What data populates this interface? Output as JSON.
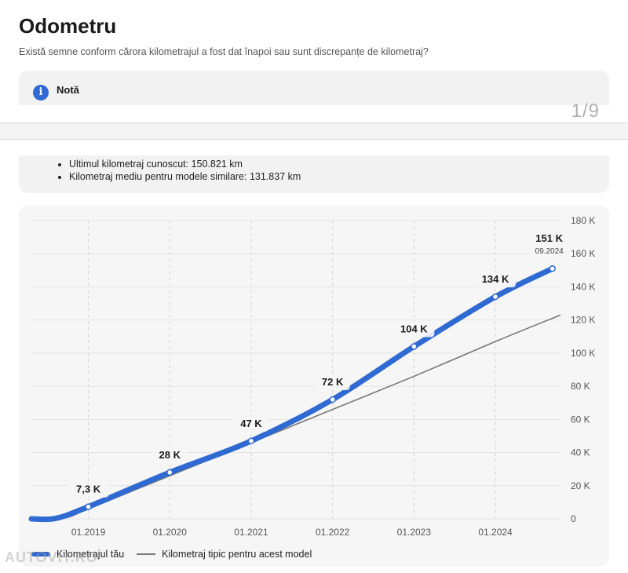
{
  "header": {
    "title": "Odometru",
    "subtitle": "Există semne conform cărora kilometrajul a fost dat înapoi sau sunt discrepanțe de kilometraj?"
  },
  "note": {
    "icon": "info-icon",
    "label": "Notă",
    "bullets": [
      "Ultimul kilometraj cunoscut: 150.821 km",
      "Kilometraj mediu pentru modele similare: 131.837 km"
    ]
  },
  "pager": {
    "text": "1/9"
  },
  "watermark": {
    "text": "AUTOVIT.RO"
  },
  "colors": {
    "accent": "#2f6ad2",
    "typical_line": "#777777",
    "card_bg": "#f6f6f6"
  },
  "chart_data": {
    "type": "line",
    "x_labels": [
      "01.2019",
      "01.2020",
      "01.2021",
      "01.2022",
      "01.2023",
      "01.2024"
    ],
    "y_ticks": [
      "0",
      "20 K",
      "40 K",
      "60 K",
      "80 K",
      "100 K",
      "120 K",
      "140 K",
      "160 K",
      "180 K"
    ],
    "ylim": [
      0,
      180
    ],
    "y_unit": "K km",
    "xlim_years": [
      2018.3,
      2024.8
    ],
    "grid": true,
    "legend_position": "bottom-left",
    "series": [
      {
        "name": "Kilometrajul tău",
        "color": "#2f6ad2",
        "points": [
          {
            "x": 2019.0,
            "y": 7.3,
            "label": "7,3 K"
          },
          {
            "x": 2020.0,
            "y": 28,
            "label": "28 K"
          },
          {
            "x": 2021.0,
            "y": 47,
            "label": "47 K"
          },
          {
            "x": 2022.0,
            "y": 72,
            "label": "72 K"
          },
          {
            "x": 2023.0,
            "y": 104,
            "label": "104 K"
          },
          {
            "x": 2024.0,
            "y": 134,
            "label": "134 K"
          },
          {
            "x": 2024.7,
            "y": 151,
            "label": "151 K",
            "sublabel": "09.2024"
          }
        ]
      },
      {
        "name": "Kilometraj tipic pentru acest model",
        "color": "#777777",
        "points": [
          {
            "x": 2018.3,
            "y": 0
          },
          {
            "x": 2018.7,
            "y": 0.5
          },
          {
            "x": 2019.0,
            "y": 6
          },
          {
            "x": 2020.0,
            "y": 26
          },
          {
            "x": 2021.0,
            "y": 46
          },
          {
            "x": 2022.0,
            "y": 66
          },
          {
            "x": 2023.0,
            "y": 86
          },
          {
            "x": 2024.0,
            "y": 107
          },
          {
            "x": 2024.8,
            "y": 123
          }
        ]
      }
    ]
  }
}
